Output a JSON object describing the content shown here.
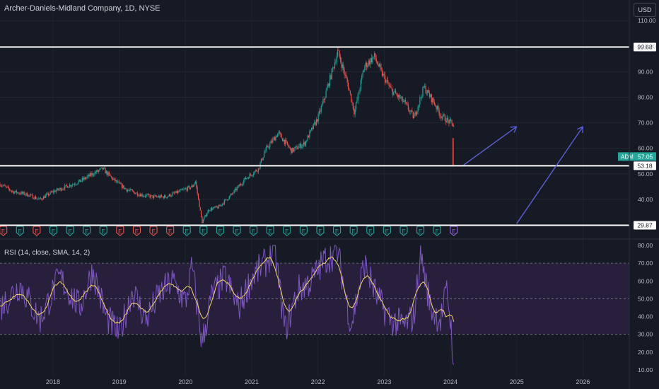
{
  "header": {
    "title": "Archer-Daniels-Midland Company, 1D, NYSE",
    "currency": "USD"
  },
  "rsi_panel": {
    "label": "RSI (14, close, SMA, 14, 2)"
  },
  "colors": {
    "background": "#161a25",
    "up": "#26a69a",
    "down": "#ef5350",
    "rsi_line": "#7e57c2",
    "rsi_ma": "#f5d76e",
    "rsi_band": "#2a2140",
    "levels": "#ffffff",
    "arrows": "#5b5fd6",
    "price_badge": "#26a69a",
    "earnings_green": "#26a69a",
    "earnings_red": "#ef5350",
    "earnings_next": "#9c6ade"
  },
  "chart_data": [
    {
      "type": "candlestick",
      "title": "Archer-Daniels-Midland Company, 1D, NYSE",
      "x_ticks": [
        "2018",
        "2019",
        "2020",
        "2021",
        "2022",
        "2023",
        "2024",
        "2025",
        "2026"
      ],
      "x_range": [
        2017.2,
        2026.7
      ],
      "y_ticks": [
        "110.00",
        "100.00",
        "90.00",
        "80.00",
        "70.00",
        "60.00",
        "50.00",
        "40.00"
      ],
      "y_range": [
        30,
        112
      ],
      "price_path": [
        [
          2017.2,
          46
        ],
        [
          2017.4,
          43
        ],
        [
          2017.6,
          42
        ],
        [
          2017.8,
          40
        ],
        [
          2018.0,
          43
        ],
        [
          2018.2,
          45
        ],
        [
          2018.4,
          47
        ],
        [
          2018.6,
          50
        ],
        [
          2018.75,
          52
        ],
        [
          2018.9,
          48
        ],
        [
          2019.1,
          44
        ],
        [
          2019.3,
          42
        ],
        [
          2019.5,
          41
        ],
        [
          2019.7,
          41
        ],
        [
          2019.9,
          43
        ],
        [
          2020.1,
          45
        ],
        [
          2020.15,
          47
        ],
        [
          2020.25,
          31
        ],
        [
          2020.35,
          36
        ],
        [
          2020.5,
          37
        ],
        [
          2020.7,
          42
        ],
        [
          2020.9,
          48
        ],
        [
          2021.1,
          52
        ],
        [
          2021.2,
          59
        ],
        [
          2021.4,
          66
        ],
        [
          2021.6,
          59
        ],
        [
          2021.8,
          62
        ],
        [
          2022.0,
          72
        ],
        [
          2022.1,
          80
        ],
        [
          2022.3,
          98
        ],
        [
          2022.45,
          85
        ],
        [
          2022.55,
          74
        ],
        [
          2022.7,
          92
        ],
        [
          2022.85,
          96
        ],
        [
          2022.95,
          90
        ],
        [
          2023.1,
          83
        ],
        [
          2023.3,
          78
        ],
        [
          2023.45,
          72
        ],
        [
          2023.6,
          84
        ],
        [
          2023.75,
          78
        ],
        [
          2023.85,
          73
        ],
        [
          2024.0,
          70
        ],
        [
          2024.05,
          69
        ]
      ],
      "last_drop": [
        2024.04,
        57.05,
        52.9
      ],
      "levels": [
        {
          "label": "99.68",
          "value": 99.68
        },
        {
          "label": "53.18",
          "value": 53.18
        },
        {
          "label": "29.87",
          "value": 29.87
        }
      ],
      "last_price": {
        "symbol": "ADM",
        "value": "57.05"
      },
      "projection_arrows": [
        {
          "from": [
            2024.2,
            53.5
          ],
          "to": [
            2025.0,
            68.5
          ]
        },
        {
          "from": [
            2025.0,
            30.5
          ],
          "to": [
            2026.0,
            68.5
          ]
        }
      ]
    },
    {
      "type": "line",
      "title": "RSI (14, close, SMA, 14, 2)",
      "y_ticks": [
        "80.00",
        "70.00",
        "60.00",
        "50.00",
        "40.00",
        "30.00",
        "20.00",
        "10.00"
      ],
      "y_range": [
        8,
        82
      ],
      "bands": [
        30,
        50,
        70
      ],
      "series": [
        {
          "name": "RSI",
          "values": [
            [
              2017.2,
              45
            ],
            [
              2017.5,
              58
            ],
            [
              2017.8,
              38
            ],
            [
              2018.1,
              62
            ],
            [
              2018.4,
              45
            ],
            [
              2018.6,
              66
            ],
            [
              2018.8,
              40
            ],
            [
              2019.0,
              30
            ],
            [
              2019.2,
              55
            ],
            [
              2019.4,
              38
            ],
            [
              2019.6,
              52
            ],
            [
              2019.8,
              60
            ],
            [
              2020.0,
              48
            ],
            [
              2020.1,
              68
            ],
            [
              2020.25,
              25
            ],
            [
              2020.4,
              52
            ],
            [
              2020.6,
              62
            ],
            [
              2020.8,
              45
            ],
            [
              2021.0,
              62
            ],
            [
              2021.2,
              70
            ],
            [
              2021.35,
              78
            ],
            [
              2021.5,
              32
            ],
            [
              2021.7,
              55
            ],
            [
              2021.9,
              60
            ],
            [
              2022.1,
              72
            ],
            [
              2022.3,
              76
            ],
            [
              2022.5,
              35
            ],
            [
              2022.7,
              70
            ],
            [
              2022.9,
              50
            ],
            [
              2023.1,
              38
            ],
            [
              2023.3,
              35
            ],
            [
              2023.45,
              40
            ],
            [
              2023.55,
              76
            ],
            [
              2023.7,
              45
            ],
            [
              2023.85,
              38
            ],
            [
              2023.95,
              55
            ],
            [
              2024.02,
              30
            ],
            [
              2024.05,
              13
            ]
          ]
        }
      ]
    }
  ],
  "earnings_markers": {
    "letter": "E",
    "count": 28,
    "red_indices": [
      0,
      2,
      7,
      8,
      9,
      10
    ],
    "next_index": 27
  }
}
